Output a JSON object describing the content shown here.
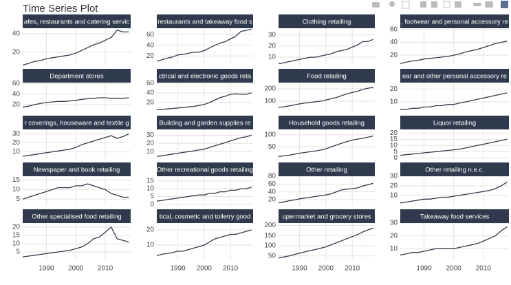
{
  "title": "Time Series Plot",
  "chart_data": [
    {
      "type": "line",
      "title": "afes, restaurants and catering servic",
      "x": [
        1982,
        1984,
        1986,
        1988,
        1990,
        1992,
        1994,
        1996,
        1998,
        2000,
        2002,
        2004,
        2006,
        2008,
        2010,
        2012,
        2014,
        2016,
        2018
      ],
      "values": [
        6,
        8,
        10,
        11,
        13,
        14,
        15,
        16,
        17,
        19,
        22,
        25,
        28,
        30,
        33,
        36,
        44,
        42,
        42
      ],
      "color": "#2f3a4b",
      "xlim": [
        1982,
        2018.6
      ],
      "xticks": [
        1990,
        2000,
        2010
      ],
      "ylim": [
        5,
        46
      ],
      "yticks": [
        20,
        40
      ],
      "grid": true
    },
    {
      "type": "line",
      "title": "restaurants and takeaway food s",
      "x": [
        1982,
        1984,
        1986,
        1988,
        1990,
        1992,
        1994,
        1996,
        1998,
        2000,
        2002,
        2004,
        2006,
        2008,
        2010,
        2012,
        2014,
        2016,
        2018
      ],
      "values": [
        10,
        13,
        16,
        18,
        22,
        23,
        25,
        27,
        27,
        30,
        35,
        40,
        44,
        47,
        52,
        57,
        66,
        68,
        70
      ],
      "color": "#2f3a4b",
      "xlim": [
        1982,
        2018.6
      ],
      "xticks": [
        1990,
        2000,
        2010
      ],
      "ylim": [
        1,
        72
      ],
      "yticks": [
        20,
        40,
        60
      ],
      "grid": true
    },
    {
      "type": "line",
      "title": "Clothing retailing",
      "x": [
        1982,
        1984,
        1986,
        1988,
        1990,
        1992,
        1994,
        1996,
        1998,
        2000,
        2002,
        2004,
        2006,
        2008,
        2010,
        2012,
        2014,
        2016,
        2018
      ],
      "values": [
        4,
        5,
        6,
        7,
        8,
        9,
        10,
        10,
        11,
        12,
        13,
        15,
        16,
        17,
        19,
        21,
        24,
        24,
        26
      ],
      "color": "#2f3a4b",
      "xlim": [
        1982,
        2018.6
      ],
      "xticks": [
        1990,
        2000,
        2010
      ],
      "ylim": [
        2,
        36
      ],
      "yticks": [
        10,
        20,
        30
      ],
      "grid": true
    },
    {
      "type": "line",
      "title": ", footwear and personal accessory re",
      "x": [
        1982,
        1984,
        1986,
        1988,
        1990,
        1992,
        1994,
        1996,
        1998,
        2000,
        2002,
        2004,
        2006,
        2008,
        2010,
        2012,
        2014,
        2016,
        2018
      ],
      "values": [
        7,
        9,
        11,
        12,
        14,
        15,
        16,
        17,
        18,
        20,
        22,
        25,
        27,
        29,
        32,
        35,
        38,
        40,
        42
      ],
      "color": "#2f3a4b",
      "xlim": [
        1982,
        2018.6
      ],
      "xticks": [
        1990,
        2000,
        2010
      ],
      "ylim": [
        3,
        62
      ],
      "yticks": [
        20,
        40,
        60
      ],
      "grid": true
    },
    {
      "type": "line",
      "title": "Department stores",
      "x": [
        1982,
        1984,
        1986,
        1988,
        1990,
        1992,
        1994,
        1996,
        1998,
        2000,
        2002,
        2004,
        2006,
        2008,
        2010,
        2012,
        2014,
        2016,
        2018
      ],
      "values": [
        15,
        17,
        20,
        22,
        24,
        25,
        26,
        26,
        27,
        28,
        30,
        31,
        32,
        33,
        33,
        32,
        32,
        32,
        33
      ],
      "color": "#2f3a4b",
      "xlim": [
        1982,
        2018.6
      ],
      "xticks": [
        1990,
        2000,
        2010
      ],
      "ylim": [
        8,
        62
      ],
      "yticks": [
        20,
        40,
        60
      ],
      "grid": true
    },
    {
      "type": "line",
      "title": "ctrical and electronic goods reta",
      "x": [
        1982,
        1984,
        1986,
        1988,
        1990,
        1992,
        1994,
        1996,
        1998,
        2000,
        2002,
        2004,
        2006,
        2008,
        2010,
        2012,
        2014,
        2016,
        2018
      ],
      "values": [
        5,
        6,
        7,
        8,
        9,
        10,
        11,
        12,
        14,
        16,
        20,
        25,
        30,
        33,
        37,
        38,
        37,
        37,
        40
      ],
      "color": "#2f3a4b",
      "xlim": [
        1982,
        2018.6
      ],
      "xticks": [
        1990,
        2000,
        2010
      ],
      "ylim": [
        3,
        61
      ],
      "yticks": [
        20,
        40,
        60
      ],
      "grid": true
    },
    {
      "type": "line",
      "title": "Food retailing",
      "x": [
        1982,
        1984,
        1986,
        1988,
        1990,
        1992,
        1994,
        1996,
        1998,
        2000,
        2002,
        2004,
        2006,
        2008,
        2010,
        2012,
        2014,
        2016,
        2018
      ],
      "values": [
        50,
        55,
        62,
        70,
        78,
        85,
        90,
        95,
        100,
        110,
        120,
        130,
        145,
        160,
        170,
        180,
        195,
        205,
        212
      ],
      "color": "#2f3a4b",
      "xlim": [
        1982,
        2018.6
      ],
      "xticks": [
        1990,
        2000,
        2010
      ],
      "ylim": [
        22,
        250
      ],
      "yticks": [
        100,
        200
      ],
      "grid": true
    },
    {
      "type": "line",
      "title": "ear and other personal accessory re",
      "x": [
        1982,
        1984,
        1986,
        1988,
        1990,
        1992,
        1994,
        1996,
        1998,
        2000,
        2002,
        2004,
        2006,
        2008,
        2010,
        2012,
        2014,
        2016,
        2018
      ],
      "values": [
        4,
        4,
        5,
        5,
        6,
        6,
        7,
        7,
        8,
        8,
        9,
        10,
        11,
        12,
        13,
        14,
        15,
        16,
        17
      ],
      "color": "#2f3a4b",
      "xlim": [
        1982,
        2018.6
      ],
      "xticks": [
        1990,
        2000,
        2010
      ],
      "ylim": [
        3,
        25
      ],
      "yticks": [
        10,
        20
      ],
      "grid": true
    },
    {
      "type": "line",
      "title": "r coverings, houseware and textile g",
      "x": [
        1982,
        1984,
        1986,
        1988,
        1990,
        1992,
        1994,
        1996,
        1998,
        2000,
        2002,
        2004,
        2006,
        2008,
        2010,
        2012,
        2014,
        2016,
        2018
      ],
      "values": [
        5,
        6,
        7,
        8,
        9,
        10,
        11,
        12,
        13,
        15,
        18,
        20,
        22,
        24,
        26,
        28,
        25,
        27,
        30
      ],
      "color": "#2f3a4b",
      "xlim": [
        1982,
        2018.6
      ],
      "xticks": [
        1990,
        2000,
        2010
      ],
      "ylim": [
        2,
        35
      ],
      "yticks": [
        10,
        20,
        30
      ],
      "grid": true
    },
    {
      "type": "line",
      "title": "Building and garden supplies re",
      "x": [
        1982,
        1984,
        1986,
        1988,
        1990,
        1992,
        1994,
        1996,
        1998,
        2000,
        2002,
        2004,
        2006,
        2008,
        2010,
        2012,
        2014,
        2016,
        2018
      ],
      "values": [
        4,
        5,
        6,
        7,
        8,
        9,
        10,
        11,
        12,
        13,
        15,
        17,
        19,
        21,
        23,
        25,
        27,
        28,
        30
      ],
      "color": "#2f3a4b",
      "xlim": [
        1982,
        2018.6
      ],
      "xticks": [
        1990,
        2000,
        2010
      ],
      "ylim": [
        1,
        37
      ],
      "yticks": [
        10,
        20,
        30
      ],
      "grid": true
    },
    {
      "type": "line",
      "title": "Household goods retailing",
      "x": [
        1982,
        1984,
        1986,
        1988,
        1990,
        1992,
        1994,
        1996,
        1998,
        2000,
        2002,
        2004,
        2006,
        2008,
        2010,
        2012,
        2014,
        2016,
        2018
      ],
      "values": [
        10,
        13,
        16,
        20,
        24,
        27,
        30,
        33,
        37,
        42,
        50,
        58,
        65,
        72,
        78,
        82,
        85,
        90,
        95
      ],
      "color": "#2f3a4b",
      "xlim": [
        1982,
        2018.6
      ],
      "xticks": [
        1990,
        2000,
        2010
      ],
      "ylim": [
        0,
        122
      ],
      "yticks": [
        50,
        100
      ],
      "grid": true
    },
    {
      "type": "line",
      "title": "Liquor retailing",
      "x": [
        1982,
        1984,
        1986,
        1988,
        1990,
        1992,
        1994,
        1996,
        1998,
        2000,
        2002,
        2004,
        2006,
        2008,
        2010,
        2012,
        2014,
        2016,
        2018
      ],
      "values": [
        2,
        2.5,
        3,
        3.5,
        4,
        4.5,
        5,
        5.5,
        6,
        6.5,
        7,
        8,
        9,
        10,
        11,
        12,
        13,
        14,
        15
      ],
      "color": "#2f3a4b",
      "xlim": [
        1982,
        2018.6
      ],
      "xticks": [
        1990,
        2000,
        2010
      ],
      "ylim": [
        -1,
        23
      ],
      "yticks": [
        0,
        5,
        10,
        15,
        20
      ],
      "grid": true
    },
    {
      "type": "line",
      "title": "Newspaper and book retailing",
      "x": [
        1982,
        1984,
        1986,
        1988,
        1990,
        1992,
        1994,
        1996,
        1998,
        2000,
        2002,
        2004,
        2006,
        2008,
        2010,
        2012,
        2014,
        2016,
        2018
      ],
      "values": [
        5,
        6,
        7,
        8,
        9,
        10,
        11,
        11,
        11,
        12,
        12,
        13,
        12,
        11,
        10,
        8,
        7,
        6,
        6
      ],
      "color": "#2f3a4b",
      "xlim": [
        1982,
        2018.6
      ],
      "xticks": [
        1990,
        2000,
        2010
      ],
      "ylim": [
        1.5,
        17
      ],
      "yticks": [
        5,
        10,
        15
      ],
      "grid": true
    },
    {
      "type": "line",
      "title": "Other recreational goods retailing",
      "x": [
        1982,
        1984,
        1986,
        1988,
        1990,
        1992,
        1994,
        1996,
        1998,
        2000,
        2002,
        2004,
        2006,
        2008,
        2010,
        2012,
        2014,
        2016,
        2018
      ],
      "values": [
        2,
        2.5,
        3,
        3.5,
        4,
        4.5,
        5,
        5.5,
        6,
        6,
        7,
        7,
        8,
        8,
        9,
        9,
        10,
        10,
        11
      ],
      "color": "#2f3a4b",
      "xlim": [
        1982,
        2018.6
      ],
      "xticks": [
        1990,
        2000,
        2010
      ],
      "ylim": [
        -1,
        18
      ],
      "yticks": [
        0,
        5,
        10,
        15
      ],
      "grid": true
    },
    {
      "type": "line",
      "title": "Other retailing",
      "x": [
        1982,
        1984,
        1986,
        1988,
        1990,
        1992,
        1994,
        1996,
        1998,
        2000,
        2002,
        2004,
        2006,
        2008,
        2010,
        2012,
        2014,
        2016,
        2018
      ],
      "values": [
        12,
        14,
        17,
        19,
        22,
        24,
        26,
        28,
        30,
        32,
        35,
        40,
        45,
        47,
        48,
        50,
        55,
        58,
        62
      ],
      "color": "#2f3a4b",
      "xlim": [
        1982,
        2018.6
      ],
      "xticks": [
        1990,
        2000,
        2010
      ],
      "ylim": [
        4,
        80
      ],
      "yticks": [
        20,
        40,
        60,
        80
      ],
      "grid": true
    },
    {
      "type": "line",
      "title": "Other retailing n.e.c.",
      "x": [
        1982,
        1984,
        1986,
        1988,
        1990,
        1992,
        1994,
        1996,
        1998,
        2000,
        2002,
        2004,
        2006,
        2008,
        2010,
        2012,
        2014,
        2016,
        2018
      ],
      "values": [
        2,
        3,
        4,
        5,
        6,
        6,
        7,
        8,
        8,
        9,
        10,
        11,
        12,
        13,
        14,
        15,
        17,
        20,
        24
      ],
      "color": "#2f3a4b",
      "xlim": [
        1982,
        2018.6
      ],
      "xticks": [
        1990,
        2000,
        2010
      ],
      "ylim": [
        -1,
        30
      ],
      "yticks": [
        10,
        20,
        30
      ],
      "grid": true
    },
    {
      "type": "line",
      "title": "Other specialised food retailing",
      "x": [
        1982,
        1984,
        1986,
        1988,
        1990,
        1992,
        1994,
        1996,
        1998,
        2000,
        2002,
        2004,
        2006,
        2008,
        2010,
        2012,
        2014,
        2016,
        2018
      ],
      "values": [
        2,
        2.5,
        3,
        3.5,
        4,
        4.5,
        5,
        5.5,
        6,
        7,
        8,
        10,
        13,
        14,
        17,
        20,
        13,
        12,
        11
      ],
      "color": "#2f3a4b",
      "xlim": [
        1982,
        2018.6
      ],
      "xticks": [
        1990,
        2000,
        2010
      ],
      "ylim": [
        0,
        22.5
      ],
      "yticks": [
        5,
        10,
        15,
        20
      ],
      "grid": true
    },
    {
      "type": "line",
      "title": "tical, cosmetic and toiletry good",
      "x": [
        1982,
        1984,
        1986,
        1988,
        1990,
        1992,
        1994,
        1996,
        1998,
        2000,
        2002,
        2004,
        2006,
        2008,
        2010,
        2012,
        2014,
        2016,
        2018
      ],
      "values": [
        3,
        4,
        4.5,
        5,
        6,
        6,
        7,
        8,
        9,
        10,
        12,
        14,
        15,
        16,
        17,
        17,
        18,
        19,
        20
      ],
      "color": "#2f3a4b",
      "xlim": [
        1982,
        2018.6
      ],
      "xticks": [
        1990,
        2000,
        2010
      ],
      "ylim": [
        0,
        24.5
      ],
      "yticks": [
        10,
        20
      ],
      "grid": true
    },
    {
      "type": "line",
      "title": "upermarket and grocery stores",
      "x": [
        1982,
        1984,
        1986,
        1988,
        1990,
        1992,
        1994,
        1996,
        1998,
        2000,
        2002,
        2004,
        2006,
        2008,
        2010,
        2012,
        2014,
        2016,
        2018
      ],
      "values": [
        40,
        45,
        50,
        57,
        64,
        70,
        76,
        82,
        88,
        95,
        105,
        115,
        125,
        135,
        145,
        155,
        168,
        178,
        188
      ],
      "color": "#2f3a4b",
      "xlim": [
        1982,
        2018.6
      ],
      "xticks": [
        1990,
        2000,
        2010
      ],
      "ylim": [
        29,
        212
      ],
      "yticks": [
        50,
        100,
        150,
        200
      ],
      "grid": true
    },
    {
      "type": "line",
      "title": "Takeaway food services",
      "x": [
        1982,
        1984,
        1986,
        1988,
        1990,
        1992,
        1994,
        1996,
        1998,
        2000,
        2002,
        2004,
        2006,
        2008,
        2010,
        2012,
        2014,
        2016,
        2018
      ],
      "values": [
        5,
        6,
        7,
        7,
        8,
        9,
        10,
        10,
        10,
        10,
        11,
        12,
        13,
        14,
        16,
        18,
        20,
        24,
        27
      ],
      "color": "#2f3a4b",
      "xlim": [
        1982,
        2018.6
      ],
      "xticks": [
        1990,
        2000,
        2010
      ],
      "ylim": [
        1,
        30
      ],
      "yticks": [
        10,
        20,
        30
      ],
      "grid": true
    }
  ]
}
